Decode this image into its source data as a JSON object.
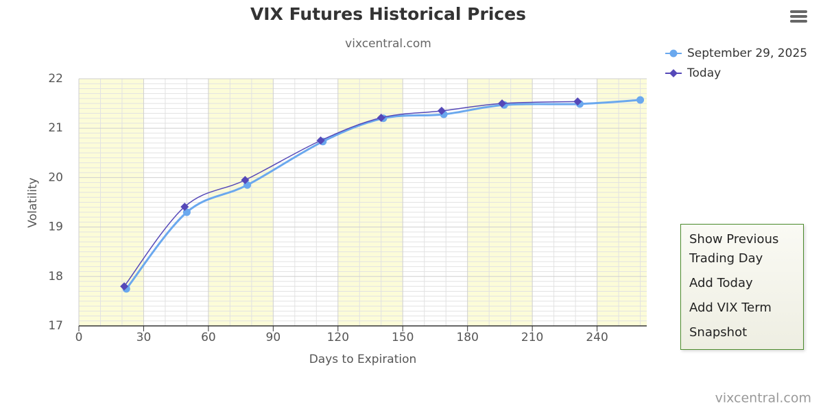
{
  "chart_data": {
    "type": "line",
    "title": "VIX Futures Historical Prices",
    "subtitle": "vixcentral.com",
    "x_label": "Days to Expiration",
    "y_label": "Volatility",
    "xlim": [
      0,
      263
    ],
    "xticks": [
      0,
      30,
      60,
      90,
      120,
      150,
      180,
      210,
      240
    ],
    "ylim": [
      17,
      22
    ],
    "yticks": [
      17,
      18,
      19,
      20,
      21,
      22
    ],
    "grid": true,
    "legend": "top-right",
    "series": [
      {
        "name": "September 29, 2025",
        "color": "#6aa8ee",
        "marker": "circle",
        "x": [
          22,
          50,
          78,
          113,
          141,
          169,
          197,
          232,
          260
        ],
        "values": [
          17.75,
          19.3,
          19.85,
          20.73,
          21.2,
          21.28,
          21.47,
          21.49,
          21.57
        ]
      },
      {
        "name": "Today",
        "color": "#5548b8",
        "marker": "diamond",
        "x": [
          21,
          49,
          77,
          112,
          140,
          168,
          196,
          231
        ],
        "values": [
          17.8,
          19.41,
          19.95,
          20.75,
          21.21,
          21.35,
          21.5,
          21.54
        ]
      }
    ],
    "credits": "vixcentral.com"
  },
  "menu": {
    "items": [
      "Show Previous Trading Day",
      "Add Today",
      "Add VIX Term",
      "Snapshot"
    ]
  }
}
